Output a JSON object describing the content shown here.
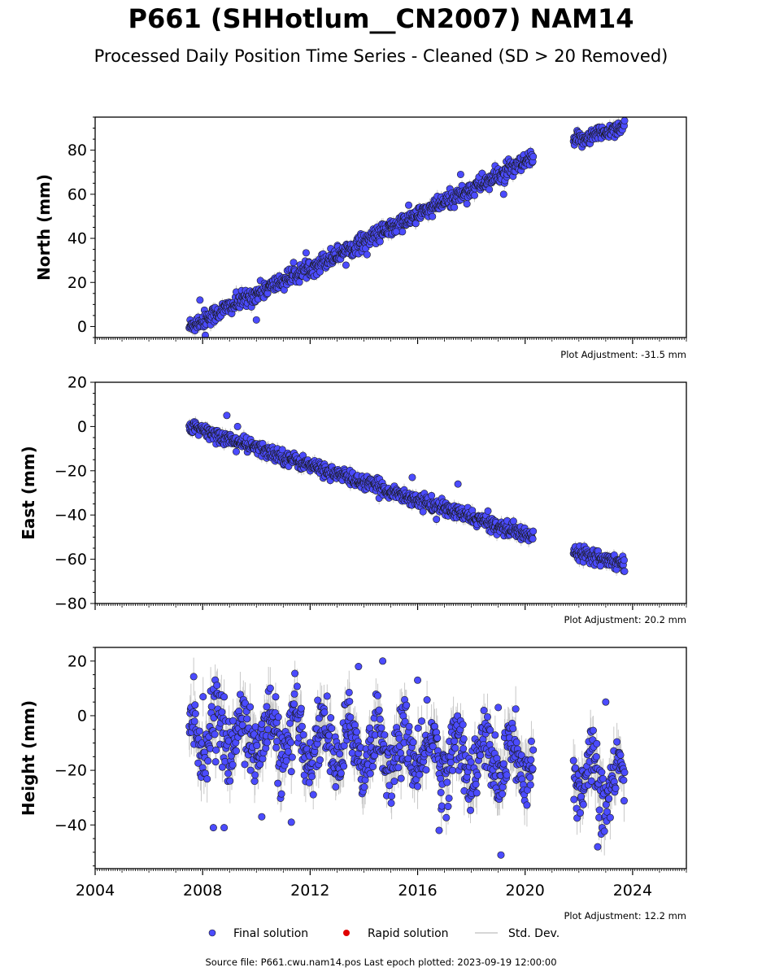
{
  "title": "P661 (SHHotlum__CN2007) NAM14",
  "subtitle": "Processed Daily Position Time Series - Cleaned (SD > 20 Removed)",
  "footer": "Source file: P661.cwu.nam14.pos  Last epoch plotted: 2023-09-19 12:00:00",
  "legend": {
    "final": "Final solution",
    "rapid": "Rapid solution",
    "stddev": "Std. Dev."
  },
  "colors": {
    "final": "#4b4bff",
    "rapid": "#e00000",
    "stddev": "#c8c8c8"
  },
  "chart_data": [
    {
      "type": "scatter",
      "ylabel": "North (mm)",
      "adjustment": "Plot Adjustment: -31.5 mm",
      "xlim": [
        2004,
        2026
      ],
      "ylim": [
        -5,
        95
      ],
      "yticks": [
        0,
        20,
        40,
        60,
        80
      ],
      "xtick_labels": [],
      "segments": [
        {
          "x": [
            2007.5,
            2020.3
          ],
          "y": [
            0,
            76
          ],
          "noise": 2.0,
          "stddev": 2.0
        },
        {
          "x": [
            2021.8,
            2023.7
          ],
          "y": [
            84,
            91
          ],
          "noise": 1.8,
          "stddev": 2.0
        }
      ],
      "outliers": [
        {
          "x": 2007.9,
          "y": 12
        },
        {
          "x": 2017.6,
          "y": 69
        },
        {
          "x": 2015.2,
          "y": 43
        },
        {
          "x": 2010.0,
          "y": 3
        },
        {
          "x": 2019.2,
          "y": 60
        },
        {
          "x": 2008.1,
          "y": -4
        }
      ]
    },
    {
      "type": "scatter",
      "ylabel": "East (mm)",
      "adjustment": "Plot Adjustment: 20.2 mm",
      "xlim": [
        2004,
        2026
      ],
      "ylim": [
        -80,
        20
      ],
      "yticks": [
        20,
        0,
        -20,
        -40,
        -60,
        -80
      ],
      "xtick_labels": [],
      "segments": [
        {
          "x": [
            2007.5,
            2020.3
          ],
          "y": [
            0,
            -50
          ],
          "noise": 1.6,
          "stddev": 2.0
        },
        {
          "x": [
            2021.8,
            2023.7
          ],
          "y": [
            -56,
            -62
          ],
          "noise": 1.6,
          "stddev": 2.0
        }
      ],
      "outliers": [
        {
          "x": 2017.5,
          "y": -26
        },
        {
          "x": 2015.8,
          "y": -23
        },
        {
          "x": 2008.9,
          "y": 5
        },
        {
          "x": 2009.3,
          "y": 0
        },
        {
          "x": 2022.8,
          "y": -63
        }
      ]
    },
    {
      "type": "scatter",
      "ylabel": "Height (mm)",
      "adjustment": "Plot Adjustment: 12.2 mm",
      "xlim": [
        2004,
        2026
      ],
      "ylim": [
        -56,
        25
      ],
      "yticks": [
        20,
        0,
        -20,
        -40
      ],
      "xtick_labels": [
        "2004",
        "2008",
        "2012",
        "2016",
        "2020",
        "2024"
      ],
      "xtick_values": [
        2004,
        2008,
        2012,
        2016,
        2020,
        2024
      ],
      "segments": [
        {
          "x": [
            2007.5,
            2020.3
          ],
          "y": [
            -5,
            -18
          ],
          "noise": 6.0,
          "seasonal": 8.0,
          "stddev": 6.0
        },
        {
          "x": [
            2021.8,
            2023.7
          ],
          "y": [
            -18,
            -28
          ],
          "noise": 6.0,
          "seasonal": 8.0,
          "stddev": 6.0
        }
      ],
      "outliers": [
        {
          "x": 2013.8,
          "y": 18
        },
        {
          "x": 2014.7,
          "y": 20
        },
        {
          "x": 2019.1,
          "y": -51
        },
        {
          "x": 2008.4,
          "y": -41
        },
        {
          "x": 2008.8,
          "y": -41
        },
        {
          "x": 2010.2,
          "y": -37
        },
        {
          "x": 2011.3,
          "y": -39
        },
        {
          "x": 2016.8,
          "y": -42
        },
        {
          "x": 2022.7,
          "y": -48
        },
        {
          "x": 2023.0,
          "y": 5
        },
        {
          "x": 2019.0,
          "y": 3
        },
        {
          "x": 2016.0,
          "y": 13
        }
      ]
    }
  ]
}
